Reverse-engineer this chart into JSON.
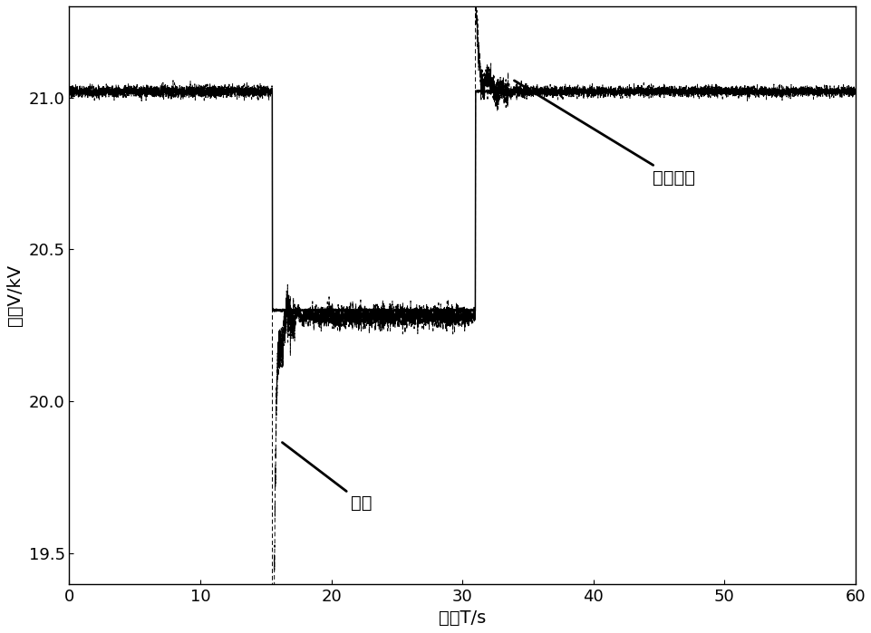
{
  "xlim": [
    0,
    60
  ],
  "ylim": [
    19.4,
    21.3
  ],
  "xlabel": "时间T/s",
  "ylabel": "电压V/kV",
  "xticks": [
    0,
    10,
    20,
    30,
    40,
    50,
    60
  ],
  "yticks": [
    19.5,
    20.0,
    20.5,
    21.0
  ],
  "annotation_fuzzy": "模糊滑模",
  "annotation_sliding": "滑模",
  "line_color": "#000000",
  "background_color": "#ffffff",
  "level_high": 21.02,
  "level_low_solid": 20.3,
  "level_low_dashed": 20.28,
  "t_drop": 15.5,
  "t_rise": 31.0,
  "spike_low": 19.48,
  "spike_high": 21.22
}
